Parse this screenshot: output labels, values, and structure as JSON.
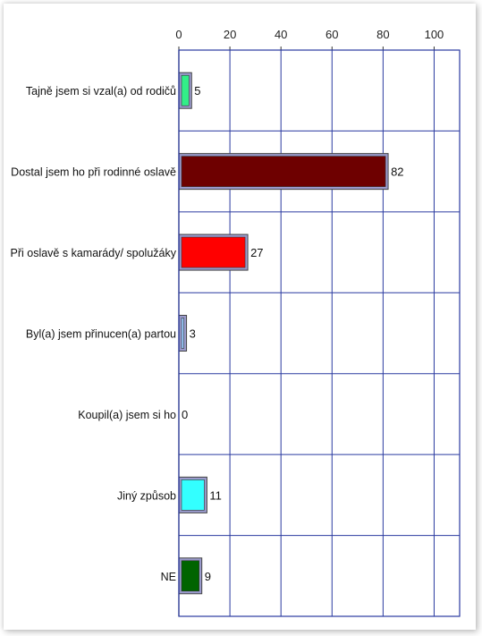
{
  "chart_data": {
    "type": "bar",
    "orientation": "horizontal",
    "categories": [
      "Tajně jsem si vzal(a) od rodičů",
      "Dostal jsem ho při rodinné oslavě",
      "Při oslavě s kamarády/ spolužáky",
      "Byl(a) jsem přinucen(a) partou",
      "Koupil(a) jsem si ho",
      "Jiný způsob",
      "NE"
    ],
    "values": [
      5,
      82,
      27,
      3,
      0,
      11,
      9
    ],
    "value_labels": [
      "5",
      "82",
      "27",
      "3",
      "0",
      "11",
      "9"
    ],
    "colors": [
      "#33ee88",
      "#6e0000",
      "#ff0000",
      "#99ccff",
      "#c0c0c0",
      "#33ffff",
      "#006400"
    ],
    "xlim": [
      0,
      110
    ],
    "x_ticks": [
      0,
      20,
      40,
      60,
      80,
      100
    ],
    "x_tick_labels": [
      "0",
      "20",
      "40",
      "60",
      "80",
      "100"
    ],
    "x_axis_position": "top",
    "grid": true,
    "gridline_color": "#2a3aa0",
    "legend": "none",
    "title": "",
    "xlabel": "",
    "ylabel": ""
  }
}
